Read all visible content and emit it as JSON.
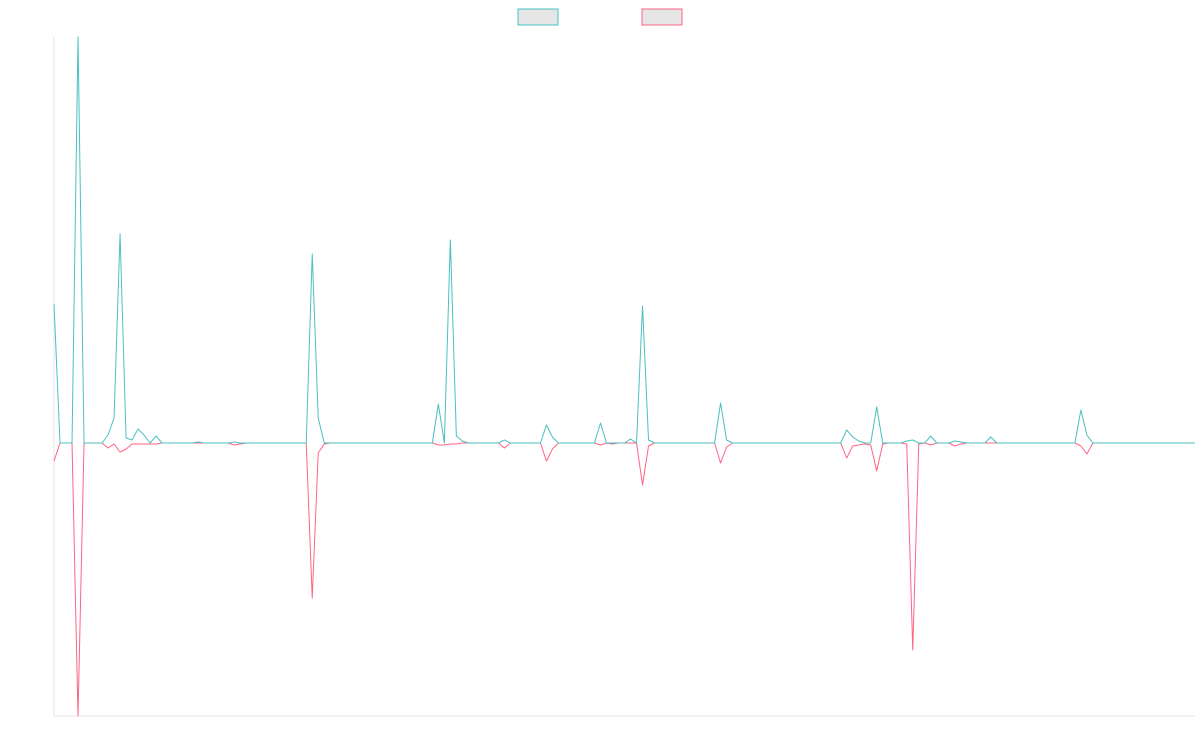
{
  "chart_data": {
    "type": "line",
    "ylim": [
      -273,
      406
    ],
    "legend": "top",
    "series": [
      {
        "color": "#4bc0c0",
        "values": [
          139,
          0,
          0,
          0,
          406,
          0,
          0,
          0,
          0,
          8,
          25,
          209,
          5,
          3,
          14,
          8,
          0,
          7,
          0,
          0,
          0,
          0,
          0,
          0,
          1,
          0,
          0,
          0,
          0,
          0,
          1,
          0,
          0,
          0,
          0,
          0,
          0,
          0,
          0,
          0,
          0,
          0,
          0,
          189,
          25,
          0,
          0,
          0,
          0,
          0,
          0,
          0,
          0,
          0,
          0,
          0,
          0,
          0,
          0,
          0,
          0,
          0,
          0,
          0,
          39,
          0,
          203,
          7,
          2,
          0,
          0,
          0,
          0,
          0,
          0,
          3,
          0,
          0,
          0,
          0,
          0,
          0,
          18,
          6,
          0,
          0,
          0,
          0,
          0,
          0,
          0,
          20,
          0,
          0,
          0,
          0,
          4,
          0,
          137,
          3,
          0,
          0,
          0,
          0,
          0,
          0,
          0,
          0,
          0,
          0,
          0,
          40,
          3,
          0,
          0,
          0,
          0,
          0,
          0,
          0,
          0,
          0,
          0,
          0,
          0,
          0,
          0,
          0,
          0,
          0,
          0,
          0,
          13,
          6,
          2,
          0,
          0,
          36,
          0,
          0,
          0,
          0,
          2,
          3,
          0,
          0,
          7,
          0,
          0,
          0,
          2,
          1,
          0,
          0,
          0,
          0,
          6,
          0,
          0,
          0,
          0,
          0,
          0,
          0,
          0,
          0,
          0,
          0,
          0,
          0,
          0,
          33,
          8,
          0,
          0,
          0,
          0,
          0,
          0,
          0,
          0,
          0,
          0,
          0,
          0,
          0,
          0,
          0,
          0,
          0,
          0
        ]
      },
      {
        "color": "#ff6384",
        "values": [
          -18,
          0,
          0,
          0,
          -273,
          0,
          0,
          0,
          0,
          -5,
          -1,
          -9,
          -6,
          -1,
          -1,
          -1,
          -1,
          -1,
          0,
          0,
          0,
          0,
          0,
          0,
          0,
          0,
          0,
          0,
          0,
          0,
          -2,
          -1,
          0,
          0,
          0,
          0,
          0,
          0,
          0,
          0,
          0,
          0,
          0,
          -155,
          -10,
          -1,
          0,
          0,
          0,
          0,
          0,
          0,
          0,
          0,
          0,
          0,
          0,
          0,
          0,
          0,
          0,
          0,
          0,
          0,
          -2,
          -2,
          -1,
          -1,
          0,
          0,
          0,
          0,
          0,
          0,
          0,
          -5,
          0,
          0,
          0,
          0,
          0,
          0,
          -18,
          -6,
          0,
          0,
          0,
          0,
          0,
          0,
          0,
          -2,
          0,
          -1,
          0,
          0,
          0,
          0,
          -42,
          -3,
          0,
          0,
          0,
          0,
          0,
          0,
          0,
          0,
          0,
          0,
          0,
          -20,
          -4,
          0,
          0,
          0,
          0,
          0,
          0,
          0,
          0,
          0,
          0,
          0,
          0,
          0,
          0,
          0,
          0,
          0,
          0,
          0,
          -15,
          -3,
          -2,
          -1,
          -2,
          -28,
          -1,
          0,
          0,
          0,
          -1,
          -207,
          -1,
          0,
          -2,
          0,
          0,
          0,
          -3,
          -1,
          0,
          0,
          0,
          0,
          0,
          0,
          0,
          0,
          0,
          0,
          0,
          0,
          0,
          0,
          0,
          0,
          0,
          0,
          0,
          -3,
          -11,
          0,
          0,
          0,
          0,
          0,
          0,
          0,
          0,
          0,
          0,
          0,
          0,
          0,
          0,
          0,
          0,
          0,
          0
        ]
      }
    ]
  }
}
